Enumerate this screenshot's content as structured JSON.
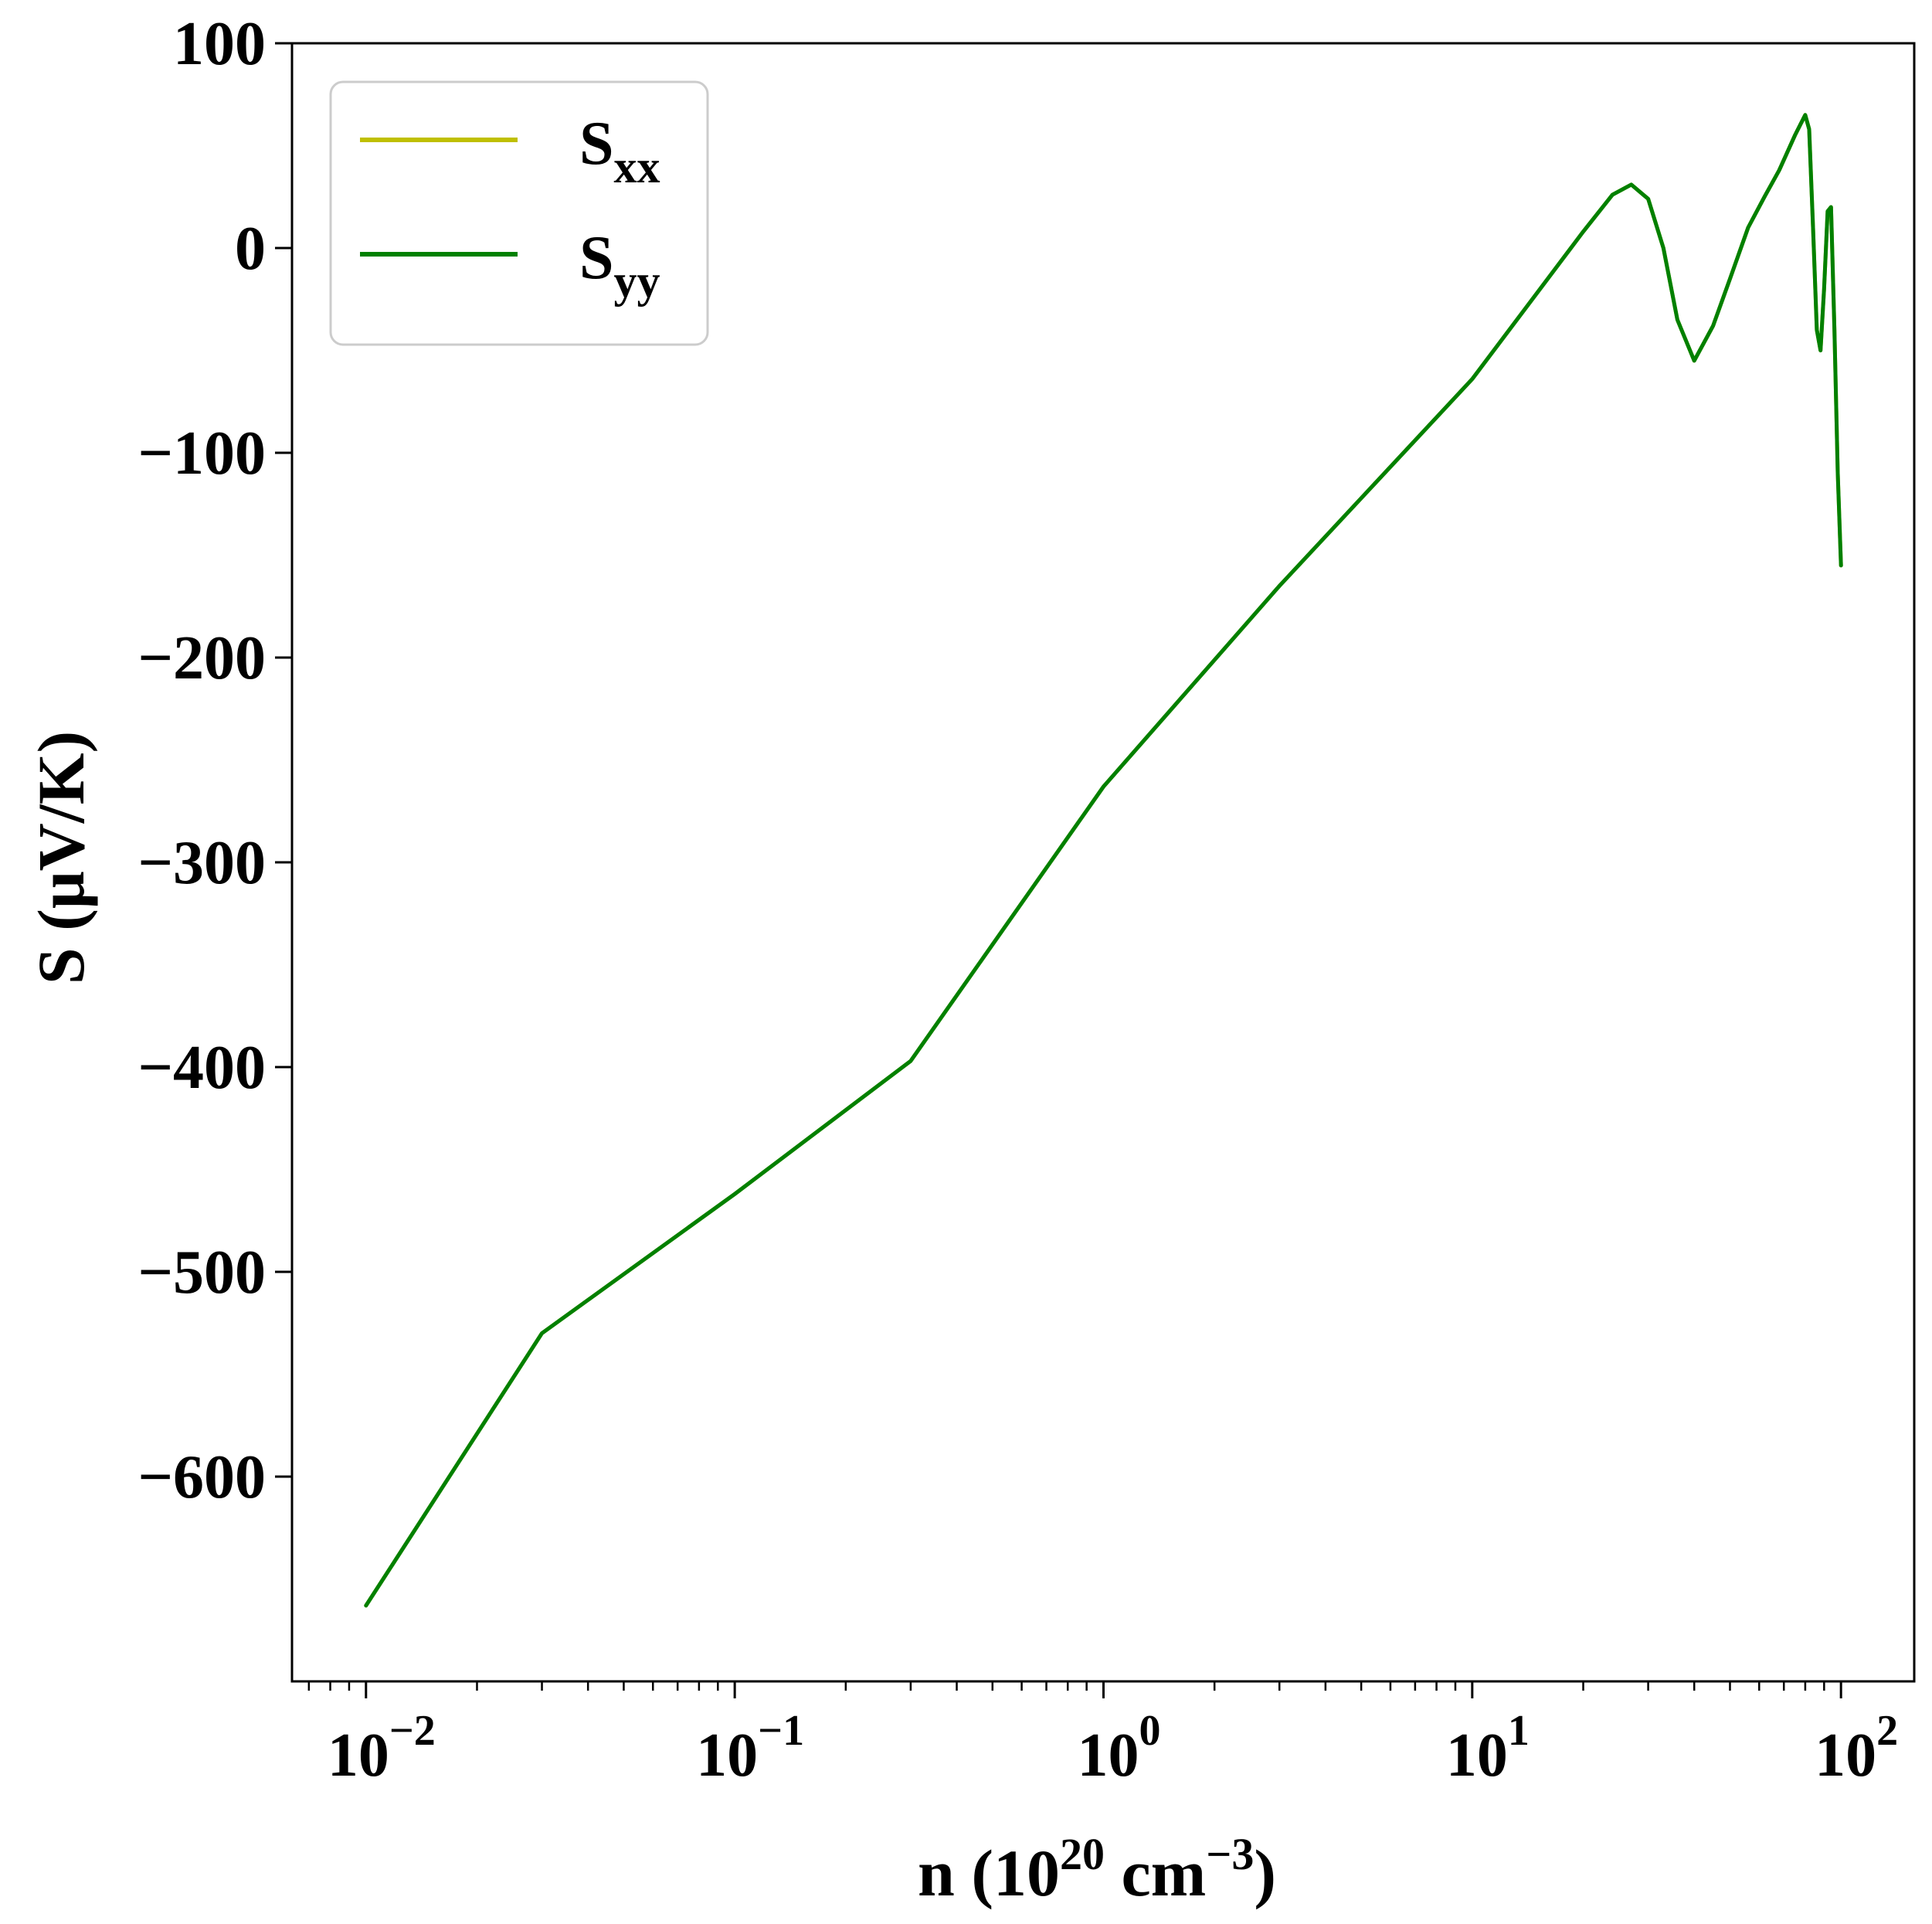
{
  "chart_data": {
    "type": "line",
    "x_scale": "log",
    "xlim": [
      0.0063,
      158
    ],
    "ylim": [
      -700,
      100
    ],
    "x_ticks": [
      {
        "value": 0.01,
        "base": "10",
        "exp": "−2"
      },
      {
        "value": 0.1,
        "base": "10",
        "exp": "−1"
      },
      {
        "value": 1,
        "base": "10",
        "exp": "0"
      },
      {
        "value": 10,
        "base": "10",
        "exp": "1"
      },
      {
        "value": 100,
        "base": "10",
        "exp": "2"
      }
    ],
    "y_ticks": [
      {
        "value": 100,
        "label": "100"
      },
      {
        "value": 0,
        "label": "0"
      },
      {
        "value": -100,
        "label": "−100"
      },
      {
        "value": -200,
        "label": "−200"
      },
      {
        "value": -300,
        "label": "−300"
      },
      {
        "value": -400,
        "label": "−400"
      },
      {
        "value": -500,
        "label": "−500"
      },
      {
        "value": -600,
        "label": "−600"
      }
    ],
    "xlabel": {
      "main": "n (10",
      "sup1": "20",
      "mid": " cm",
      "sup2": "−3",
      "end": ")"
    },
    "ylabel": "S (μV/K)",
    "grid": false,
    "legend_position": "top-left",
    "series": [
      {
        "name": "S",
        "name_sub": "xx",
        "color": "#bfbf00",
        "x": [
          0.01,
          0.03,
          0.1,
          0.3,
          1,
          3,
          10,
          20,
          24,
          27,
          30,
          33,
          36,
          40,
          45,
          50,
          56,
          62,
          68,
          75,
          80,
          82,
          84,
          86,
          88,
          90,
          92,
          94,
          96,
          98,
          100
        ],
        "y": [
          -663,
          -530,
          -462,
          -397,
          -263,
          -165,
          -64,
          8,
          26,
          31,
          24,
          0,
          -35,
          -55,
          -38,
          -15,
          10,
          25,
          38,
          55,
          65,
          58,
          10,
          -40,
          -50,
          -20,
          18,
          20,
          -40,
          -110,
          -155
        ]
      },
      {
        "name": "S",
        "name_sub": "yy",
        "color": "#008000",
        "x": [
          0.01,
          0.03,
          0.1,
          0.3,
          1,
          3,
          10,
          20,
          24,
          27,
          30,
          33,
          36,
          40,
          45,
          50,
          56,
          62,
          68,
          75,
          80,
          82,
          84,
          86,
          88,
          90,
          92,
          94,
          96,
          98,
          100
        ],
        "y": [
          -663,
          -530,
          -462,
          -397,
          -263,
          -165,
          -64,
          8,
          26,
          31,
          24,
          0,
          -35,
          -55,
          -38,
          -15,
          10,
          25,
          38,
          55,
          65,
          58,
          10,
          -40,
          -50,
          -20,
          18,
          20,
          -40,
          -110,
          -155
        ]
      }
    ]
  }
}
